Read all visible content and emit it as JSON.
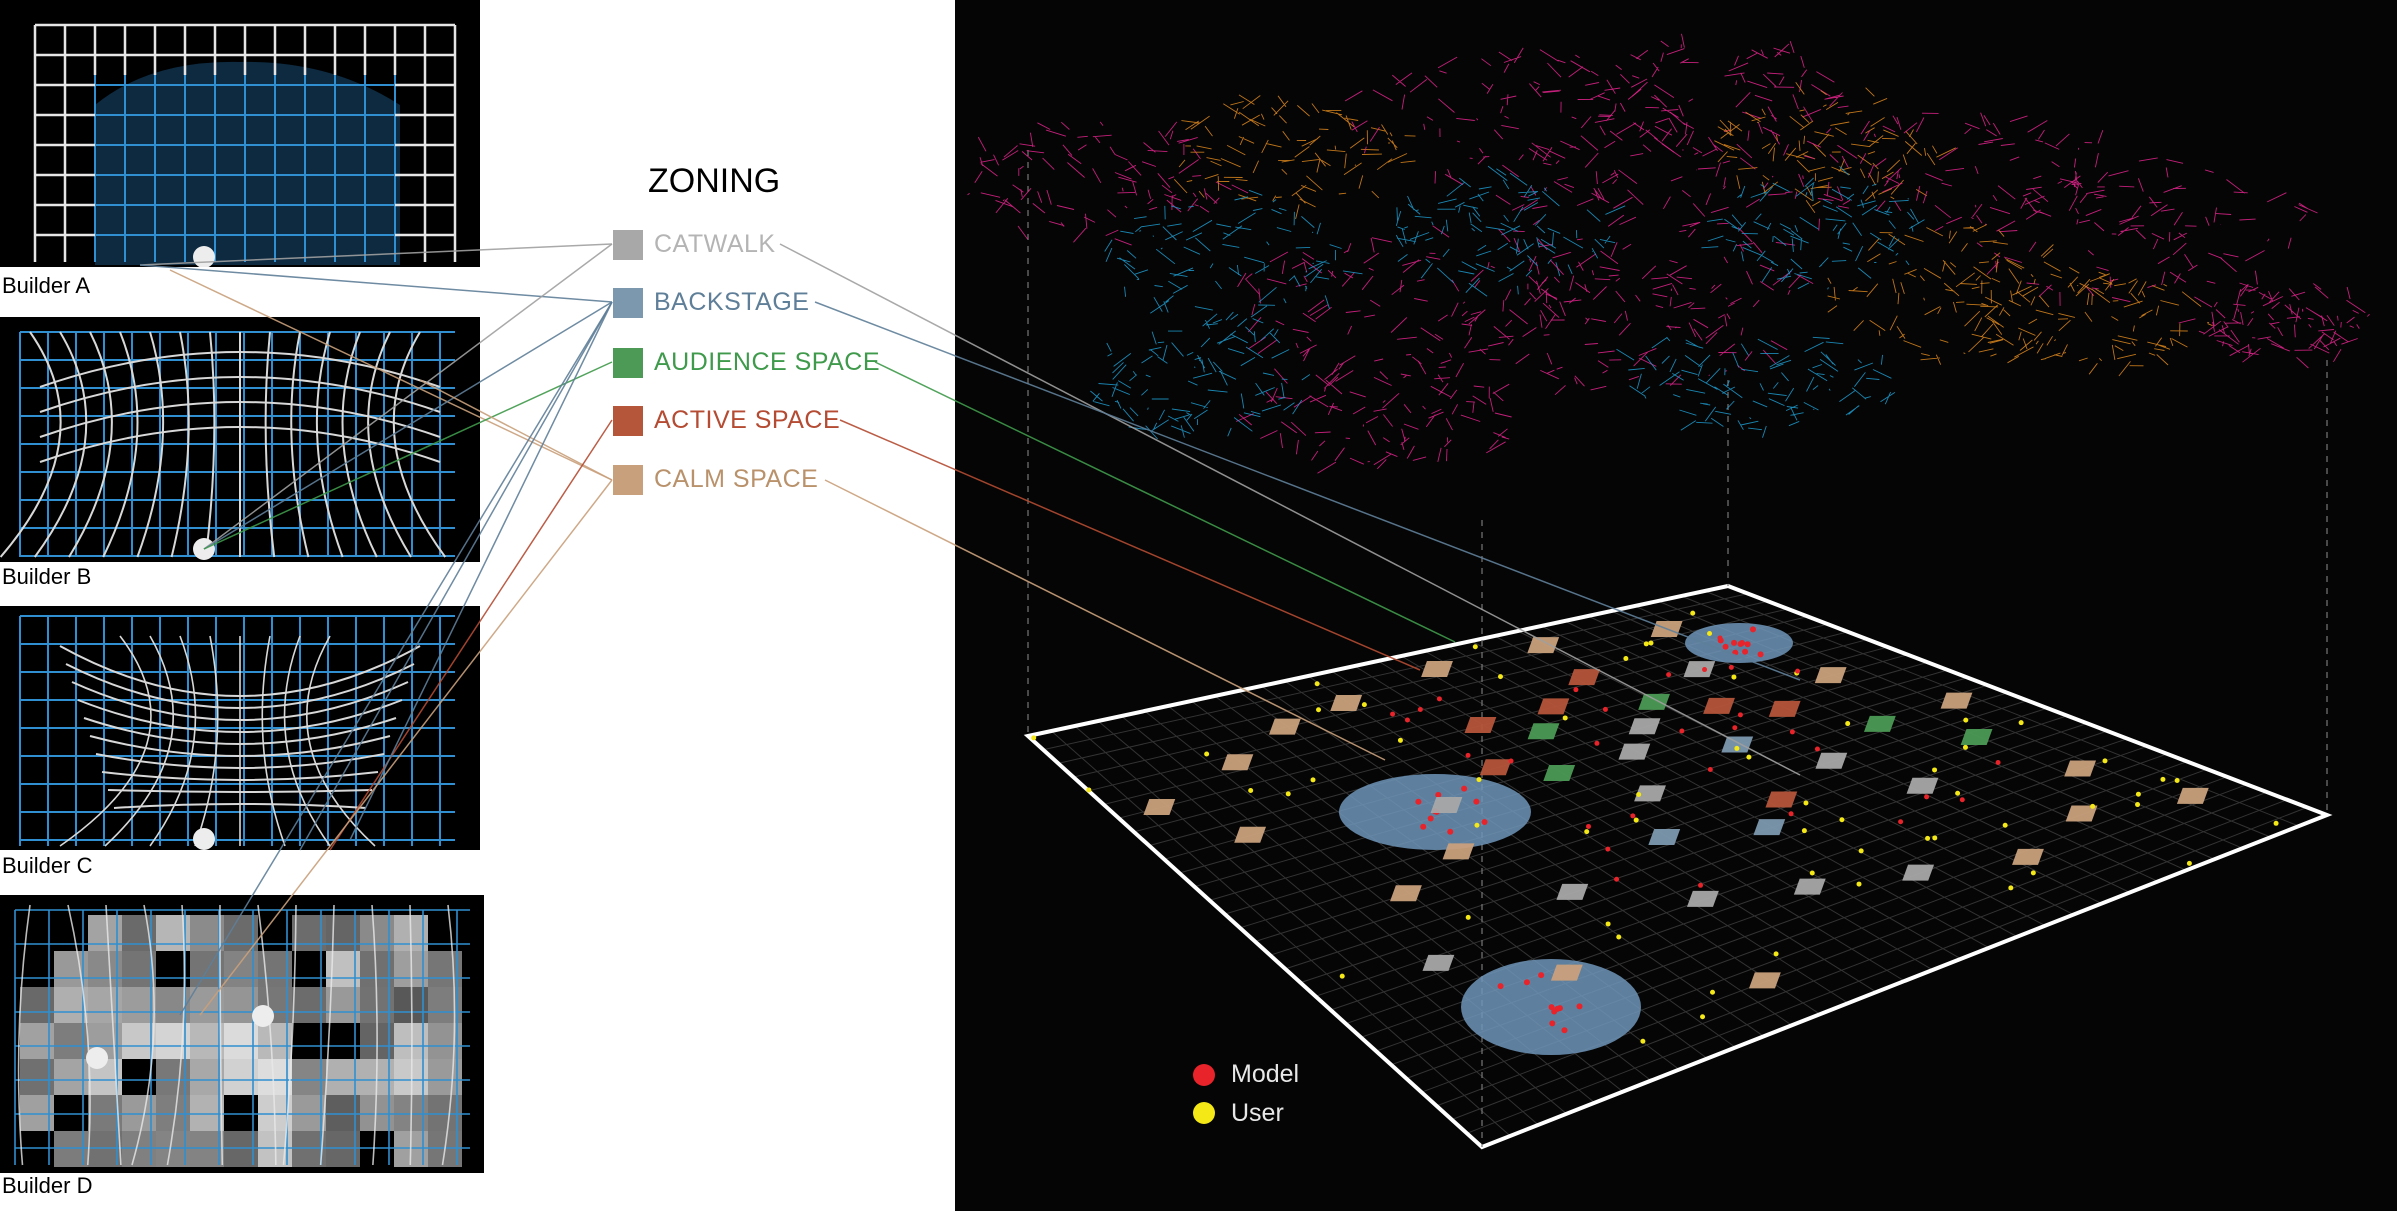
{
  "builders": [
    {
      "label": "Builder A"
    },
    {
      "label": "Builder B"
    },
    {
      "label": "Builder C"
    },
    {
      "label": "Builder D"
    }
  ],
  "zoning": {
    "title": "ZONING",
    "zones": [
      {
        "label": "CATWALK",
        "color": "#a8a8a8",
        "text_color": "#b4b4b4"
      },
      {
        "label": "BACKSTAGE",
        "color": "#7c98ae",
        "text_color": "#5f7f99"
      },
      {
        "label": "AUDIENCE SPACE",
        "color": "#4c9a55",
        "text_color": "#3f9a4b"
      },
      {
        "label": "ACTIVE SPACE",
        "color": "#b5553a",
        "text_color": "#b44b32"
      },
      {
        "label": "CALM SPACE",
        "color": "#c9a07c",
        "text_color": "#b9926b"
      }
    ]
  },
  "key": {
    "model": {
      "label": "Model",
      "color": "#e8232a"
    },
    "user": {
      "label": "User",
      "color": "#f4e816"
    }
  },
  "colors": {
    "grid_blue": "#2f8fd0",
    "mesh_magenta": "#e6248f",
    "mesh_orange": "#e08a1f",
    "mesh_cyan": "#1f9ed1",
    "floor_line": "#3a3a3a",
    "circle_fill": "#6f95b8"
  }
}
